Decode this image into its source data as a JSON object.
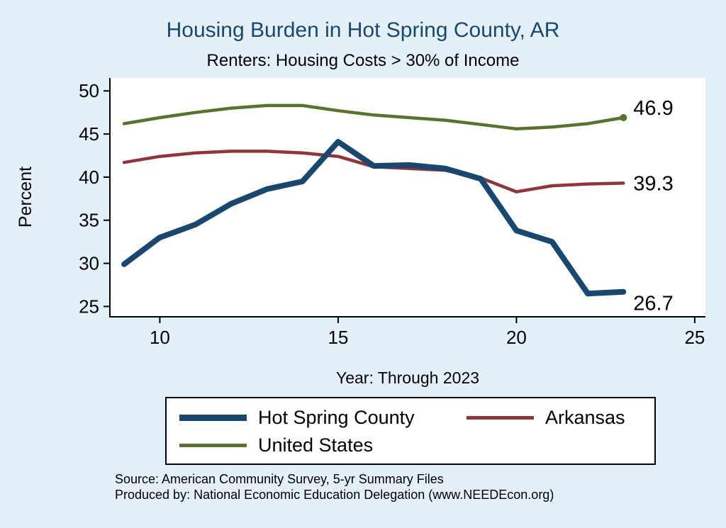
{
  "title": "Housing Burden in Hot Spring County, AR",
  "subtitle": "Renters: Housing Costs > 30% of Income",
  "ylabel": "Percent",
  "xlabel": "Year: Through 2023",
  "source": {
    "line1": "Source: American Community Survey, 5-yr Summary Files",
    "line2": "Produced by: National Economic Education Delegation (www.NEEDEcon.org)"
  },
  "legend": [
    {
      "label": "Hot Spring County",
      "color": "#1a476f",
      "weight": "thick"
    },
    {
      "label": "Arkansas",
      "color": "#90353b",
      "weight": "thin"
    },
    {
      "label": "United States",
      "color": "#55752f",
      "weight": "thin"
    }
  ],
  "colors": {
    "background": "#e3f0f8",
    "plot_background": "#ffffff",
    "title": "#1a476f",
    "axis": "#000000"
  },
  "chart_data": {
    "type": "line",
    "x": [
      9,
      10,
      11,
      12,
      13,
      14,
      15,
      16,
      17,
      18,
      19,
      20,
      21,
      22,
      23
    ],
    "x_note": "years 2009-2023 shown as 10/15/20/25 on axis",
    "series": [
      {
        "name": "United States",
        "color": "#55752f",
        "width": 4.5,
        "values": [
          46.2,
          46.9,
          47.5,
          48.0,
          48.3,
          48.3,
          47.7,
          47.2,
          46.9,
          46.6,
          46.1,
          45.6,
          45.8,
          46.2,
          46.9
        ],
        "end_label": "46.9",
        "end_marker": true,
        "label_dy": -14
      },
      {
        "name": "Arkansas",
        "color": "#90353b",
        "width": 4.5,
        "values": [
          41.7,
          42.4,
          42.8,
          43.0,
          43.0,
          42.8,
          42.4,
          41.2,
          41.0,
          40.8,
          39.9,
          38.3,
          39.0,
          39.2,
          39.3
        ],
        "end_label": "39.3",
        "end_marker": false,
        "label_dy": 0
      },
      {
        "name": "Hot Spring County",
        "color": "#1a476f",
        "width": 8,
        "values": [
          29.9,
          33.0,
          34.5,
          36.9,
          38.6,
          39.5,
          44.1,
          41.3,
          41.4,
          41.0,
          39.8,
          33.8,
          32.5,
          26.5,
          26.7
        ],
        "end_label": "26.7",
        "end_marker": false,
        "label_dy": 16
      }
    ],
    "xlim": [
      8.6,
      25.3
    ],
    "ylim": [
      23.8,
      51.5
    ],
    "xticks": [
      10,
      15,
      20,
      25
    ],
    "yticks": [
      25,
      30,
      35,
      40,
      45,
      50
    ],
    "grid": false,
    "legend_position": "bottom"
  }
}
